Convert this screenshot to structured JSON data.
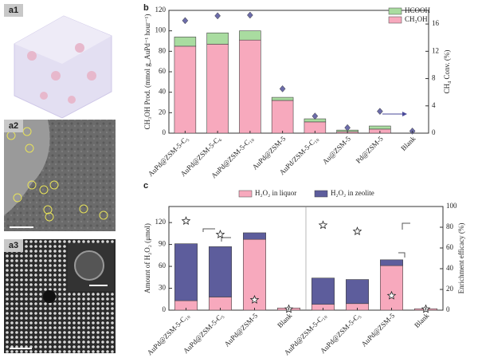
{
  "panels": [
    "a1",
    "a2",
    "a3"
  ],
  "chart_data": [
    {
      "type": "bar",
      "stacked": true,
      "label": "b",
      "ylabel": "CH₃OH Prod. (mmol g_AuPd⁻¹ hour⁻¹)",
      "y2label": "CH₄ Conv. (%)",
      "categories": [
        "AuPd@ZSM-5-C₅",
        "AuPd@ZSM-5-C₆",
        "AuPd@ZSM-5-C₁₀",
        "AuPd@ZSM-5",
        "AuPd/ZSM-5-C₁₀",
        "Au@ZSM-5",
        "Pd@ZSM-5",
        "Blank"
      ],
      "series": [
        {
          "name": "CH₃OH",
          "color": "#f7a9bd",
          "values": [
            85,
            87,
            91,
            32,
            11,
            1.5,
            4,
            0
          ]
        },
        {
          "name": "HCOOH",
          "color": "#a9dca0",
          "values": [
            9,
            11,
            9,
            3,
            3,
            1.5,
            3,
            0
          ]
        },
        {
          "axis": "y2",
          "marker": "diamond",
          "color": "#6c6caa",
          "values": [
            16.5,
            17.2,
            17.3,
            6.5,
            2.5,
            0.8,
            3.2,
            0.3
          ]
        }
      ],
      "ylim": [
        0,
        120
      ],
      "yticks": [
        0,
        20,
        40,
        60,
        80,
        100,
        120
      ],
      "y2lim": [
        0,
        18
      ],
      "y2ticks": [
        0,
        4,
        8,
        12,
        16
      ]
    },
    {
      "type": "bar",
      "stacked": true,
      "label": "c",
      "divider": true,
      "ylabel": "Amount of H₂O₂ (μmol)",
      "y2label": "Enrichment efficacy (%)",
      "categories": [
        "AuPd@ZSM-5-C₁₀",
        "AuPd@ZSM-5-C₅",
        "AuPd@ZSM-5",
        "Blank",
        "AuPd@ZSM-5-C₁₀",
        "AuPd@ZSM-5-C₅",
        "AuPd@ZSM-5",
        "Blank"
      ],
      "series": [
        {
          "name": "H₂O₂ in liquor",
          "color": "#f7a9bd",
          "values": [
            13,
            18,
            97,
            3,
            8,
            9,
            61,
            2
          ]
        },
        {
          "name": "H₂O₂ in zeolite",
          "color": "#5d5d9c",
          "values": [
            78,
            69,
            9,
            0,
            36,
            33,
            8,
            0
          ]
        },
        {
          "axis": "y2",
          "marker": "star",
          "color": "#ffffff",
          "values": [
            86,
            73,
            10,
            1,
            82,
            76,
            14,
            1
          ]
        }
      ],
      "ylim": [
        0,
        142
      ],
      "yticks": [
        0,
        30,
        60,
        90,
        120
      ],
      "y2lim": [
        0,
        100
      ],
      "y2ticks": [
        0,
        20,
        40,
        60,
        80,
        100
      ]
    }
  ]
}
